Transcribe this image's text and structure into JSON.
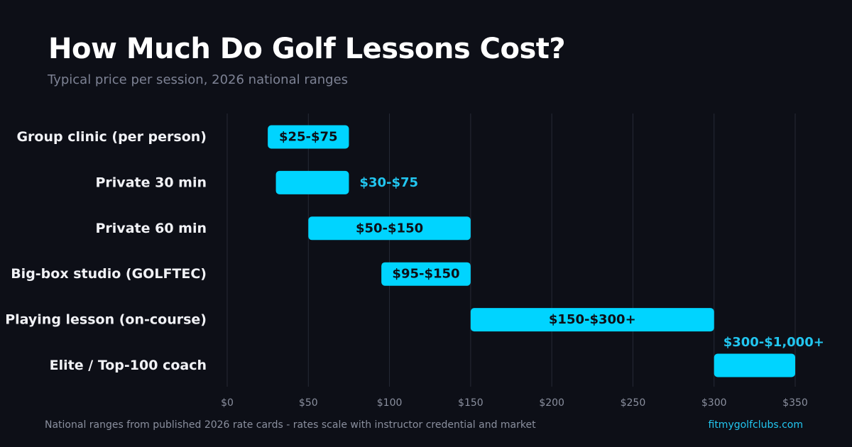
{
  "header": {
    "title": "How Much Do Golf Lessons Cost?",
    "subtitle": "Typical price per session, 2026 national ranges"
  },
  "footer": {
    "note": "National ranges from published 2026 rate cards - rates scale with instructor credential and market",
    "brand": "fitmygolfclubs.com"
  },
  "colors": {
    "background": "#0d0f17",
    "bar": "#00d4ff",
    "label_inside": "#0d0f17",
    "label_outside": "#22c6f0",
    "category_text": "#f1f2f6",
    "tick_text": "#8a8f9e",
    "grid": "#262a36"
  },
  "chart_data": {
    "type": "bar",
    "orientation": "horizontal",
    "style": "floating-range",
    "categories": [
      "Group clinic (per person)",
      "Private 30 min",
      "Private 60 min",
      "Big-box studio (GOLFTEC)",
      "Playing lesson (on-course)",
      "Elite / Top-100 coach"
    ],
    "ranges": [
      {
        "low": 25,
        "high": 75,
        "label": "$25-$75",
        "label_position": "inside"
      },
      {
        "low": 30,
        "high": 75,
        "label": "$30-$75",
        "label_position": "right"
      },
      {
        "low": 50,
        "high": 150,
        "label": "$50-$150",
        "label_position": "inside"
      },
      {
        "low": 95,
        "high": 150,
        "label": "$95-$150",
        "label_position": "inside"
      },
      {
        "low": 150,
        "high": 300,
        "label": "$150-$300+",
        "label_position": "inside"
      },
      {
        "low": 300,
        "high": 350,
        "label": "$300-$1,000+",
        "label_position": "above"
      }
    ],
    "xlim": [
      0,
      350
    ],
    "xticks": [
      0,
      50,
      100,
      150,
      200,
      250,
      300,
      350
    ],
    "xtick_labels": [
      "$0",
      "$50",
      "$100",
      "$150",
      "$200",
      "$250",
      "$300",
      "$350"
    ],
    "grid": true,
    "legend": "none",
    "xlabel": "",
    "ylabel": ""
  }
}
